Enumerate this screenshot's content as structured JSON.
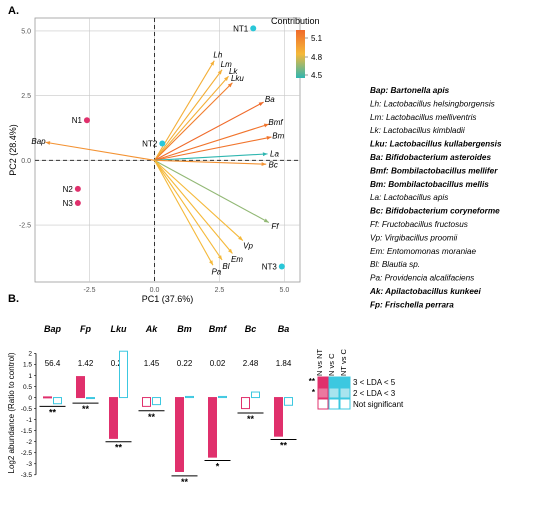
{
  "panel_a_label": "A.",
  "panel_b_label": "B.",
  "colors": {
    "bar_pink": "#e0306c",
    "bar_blue": "#3cc8e0",
    "grid": "#c8c8c8",
    "axis_dash": "#333333"
  },
  "chart_data": [
    {
      "type": "scatter",
      "subtype": "pca-biplot",
      "xlabel": "PC1 (37.6%)",
      "ylabel": "PC2 (28.4%)",
      "xlim": [
        -4.6,
        5.6
      ],
      "ylim": [
        -4.7,
        5.5
      ],
      "x_ticks": [
        -2.5,
        0.0,
        2.5,
        5.0
      ],
      "x_tick_labels": [
        "-2.5",
        "0.0",
        "2.5",
        "5.0"
      ],
      "y_ticks": [
        5.0,
        2.5,
        0.0,
        -2.5
      ],
      "y_tick_labels": [
        "5.0",
        "2.5",
        "0.0",
        "-2.5"
      ],
      "grid": true,
      "points": [
        {
          "name": "NT1",
          "x": 3.8,
          "y": 5.1,
          "group": "NT"
        },
        {
          "name": "NT2",
          "x": 0.3,
          "y": 0.65,
          "group": "NT"
        },
        {
          "name": "NT3",
          "x": 4.9,
          "y": -4.1,
          "group": "NT"
        },
        {
          "name": "N1",
          "x": -2.6,
          "y": 1.55,
          "group": "N"
        },
        {
          "name": "N2",
          "x": -2.95,
          "y": -1.1,
          "group": "N"
        },
        {
          "name": "N3",
          "x": -2.95,
          "y": -1.65,
          "group": "N"
        }
      ],
      "point_colors": {
        "NT": "#29c7d8",
        "N": "#e0306c"
      },
      "legend": {
        "title": "Contribution",
        "position": "top-right",
        "tick_labels": [
          "5.1",
          "4.8",
          "4.5"
        ],
        "gradient": [
          "#f06a2a",
          "#f5b93a",
          "#2fb6b0"
        ]
      },
      "loadings": [
        {
          "label": "Bap",
          "x": -4.2,
          "y": 0.7,
          "contribution": 5.0
        },
        {
          "label": "Lh",
          "x": 2.3,
          "y": 3.85,
          "contribution": 4.85
        },
        {
          "label": "Lm",
          "x": 2.6,
          "y": 3.5,
          "contribution": 4.85
        },
        {
          "label": "Lk",
          "x": 2.85,
          "y": 3.25,
          "contribution": 4.85
        },
        {
          "label": "Lku",
          "x": 3.0,
          "y": 3.0,
          "contribution": 5.1
        },
        {
          "label": "Ba",
          "x": 4.2,
          "y": 2.25,
          "contribution": 5.2
        },
        {
          "label": "Bmf",
          "x": 4.4,
          "y": 1.4,
          "contribution": 5.15
        },
        {
          "label": "Bm",
          "x": 4.5,
          "y": 0.9,
          "contribution": 5.15
        },
        {
          "label": "La",
          "x": 4.35,
          "y": 0.25,
          "contribution": 4.4
        },
        {
          "label": "Bc",
          "x": 4.3,
          "y": -0.15,
          "contribution": 5.0
        },
        {
          "label": "Ff",
          "x": 4.4,
          "y": -2.4,
          "contribution": 4.6
        },
        {
          "label": "Vp",
          "x": 3.4,
          "y": -3.1,
          "contribution": 4.8
        },
        {
          "label": "Em",
          "x": 3.0,
          "y": -3.6,
          "contribution": 4.8
        },
        {
          "label": "Bl",
          "x": 2.6,
          "y": -3.85,
          "contribution": 4.8
        },
        {
          "label": "Pa",
          "x": 2.25,
          "y": -4.05,
          "contribution": 4.8
        }
      ]
    },
    {
      "type": "bar",
      "subtype": "grouped",
      "ylabel": "Log2 abundance (Ratio to control)",
      "ylim": [
        -3.6,
        2.2
      ],
      "y_ticks": [
        2,
        1.5,
        1,
        0.5,
        0,
        -0.5,
        -1,
        -1.5,
        -2,
        -2.5,
        -3,
        -3.5
      ],
      "y_tick_labels": [
        "2",
        "1.5",
        "1",
        "0.5",
        "0",
        "-0.5",
        "-1",
        "-1.5",
        "-2",
        "-2.5",
        "-3",
        "-3.5"
      ],
      "categories": [
        "Bap",
        "Fp",
        "Lku",
        "Ak",
        "Bm",
        "Bmf",
        "Bc",
        "Ba"
      ],
      "top_values": [
        "56.4",
        "1.42",
        "0.20",
        "1.45",
        "0.22",
        "0.02",
        "2.48",
        "1.84"
      ],
      "series": [
        {
          "name": "N",
          "values": [
            0.03,
            0.95,
            -1.85,
            -0.4,
            -3.35,
            -2.7,
            -0.5,
            -1.75
          ],
          "filled": [
            true,
            true,
            true,
            false,
            true,
            true,
            false,
            true
          ]
        },
        {
          "name": "NT",
          "values": [
            -0.28,
            0.0,
            2.1,
            -0.32,
            0.05,
            0.05,
            0.25,
            -0.35
          ],
          "filled": [
            false,
            false,
            false,
            false,
            false,
            false,
            false,
            false
          ]
        }
      ],
      "significance": [
        {
          "category": "Bap",
          "stars": "**",
          "y": -0.4
        },
        {
          "category": "Fp",
          "stars": "**",
          "y": -0.25
        },
        {
          "category": "Lku",
          "stars": "**",
          "y": -2.0
        },
        {
          "category": "Ak",
          "stars": "**",
          "y": -0.6
        },
        {
          "category": "Bm",
          "stars": "**",
          "y": -3.55
        },
        {
          "category": "Bmf",
          "stars": "*",
          "y": -2.85
        },
        {
          "category": "Bc",
          "stars": "**",
          "y": -0.7
        },
        {
          "category": "Ba",
          "stars": "**",
          "y": -1.9
        }
      ],
      "legend": {
        "column_headers": [
          "N vs NT",
          "N vs C",
          "NT vs C"
        ],
        "rows": [
          {
            "marker": "**",
            "label": "3 < LDA < 5"
          },
          {
            "marker": "*",
            "label": "2 < LDA < 3"
          },
          {
            "marker": "",
            "label": "Not significant"
          }
        ]
      }
    }
  ],
  "species_legend": [
    {
      "abbr": "Bap",
      "name": "Bartonella apis",
      "bold": true
    },
    {
      "abbr": "Lh",
      "name": "Lactobacillus helsingborgensis",
      "bold": false
    },
    {
      "abbr": "Lm",
      "name": "Lactobacillus melliventris",
      "bold": false
    },
    {
      "abbr": "Lk",
      "name": "Lactobacillus kimbladii",
      "bold": false
    },
    {
      "abbr": "Lku",
      "name": "Lactobacillus kullabergensis",
      "bold": true
    },
    {
      "abbr": "Ba",
      "name": "Bifidobacterium asteroides",
      "bold": true
    },
    {
      "abbr": "Bmf",
      "name": "Bombilactobacillus mellifer",
      "bold": true
    },
    {
      "abbr": "Bm",
      "name": "Bombilactobacillus mellis",
      "bold": true
    },
    {
      "abbr": "La",
      "name": "Lactobacillus apis",
      "bold": false
    },
    {
      "abbr": "Bc",
      "name": "Bifidobacterium coryneforme",
      "bold": true
    },
    {
      "abbr": "Ff",
      "name": "Fructobacillus fructosus",
      "bold": false
    },
    {
      "abbr": "Vp",
      "name": "Virgibacillus proomii",
      "bold": false
    },
    {
      "abbr": "Em",
      "name": "Entomomonas moraniae",
      "bold": false
    },
    {
      "abbr": "Bl",
      "name": "Blautia sp.",
      "bold": false
    },
    {
      "abbr": "Pa",
      "name": "Providencia alcalifaciens",
      "bold": false
    },
    {
      "abbr": "Ak",
      "name": "Apilactobacillus kunkeei",
      "bold": true
    },
    {
      "abbr": "Fp",
      "name": "Frischella perrara",
      "bold": true
    }
  ]
}
